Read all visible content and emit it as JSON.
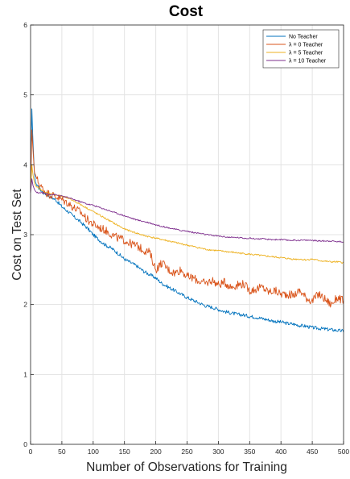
{
  "chart_data": {
    "type": "line",
    "title": "Cost",
    "xlabel": "Number of Observations for Training",
    "ylabel": "Cost on Test Set",
    "xlim": [
      0,
      500
    ],
    "ylim": [
      0,
      6
    ],
    "xticks": [
      0,
      50,
      100,
      150,
      200,
      250,
      300,
      350,
      400,
      450,
      500
    ],
    "yticks": [
      0,
      1,
      2,
      3,
      4,
      5,
      6
    ],
    "grid": true,
    "legend_position": "top-right",
    "series": [
      {
        "name": "No Teacher",
        "color": "#0072bd",
        "x": [
          0,
          2,
          4,
          6,
          8,
          10,
          15,
          20,
          25,
          30,
          40,
          50,
          60,
          70,
          80,
          90,
          100,
          110,
          120,
          130,
          140,
          150,
          160,
          170,
          180,
          190,
          200,
          210,
          220,
          230,
          240,
          250,
          260,
          270,
          280,
          290,
          300,
          310,
          320,
          330,
          340,
          350,
          360,
          370,
          380,
          390,
          400,
          410,
          420,
          430,
          440,
          450,
          460,
          470,
          480,
          490,
          500
        ],
        "values": [
          3.6,
          4.8,
          4.3,
          3.9,
          3.75,
          3.7,
          3.65,
          3.6,
          3.58,
          3.55,
          3.5,
          3.4,
          3.33,
          3.25,
          3.18,
          3.1,
          3.0,
          2.92,
          2.85,
          2.8,
          2.73,
          2.65,
          2.6,
          2.55,
          2.48,
          2.43,
          2.38,
          2.3,
          2.25,
          2.2,
          2.15,
          2.1,
          2.06,
          2.02,
          1.98,
          1.96,
          1.93,
          1.9,
          1.88,
          1.86,
          1.85,
          1.83,
          1.82,
          1.8,
          1.78,
          1.76,
          1.75,
          1.73,
          1.72,
          1.7,
          1.69,
          1.67,
          1.66,
          1.65,
          1.64,
          1.63,
          1.62
        ]
      },
      {
        "name": "λ = 0 Teacher",
        "color": "#d95319",
        "x": [
          0,
          2,
          4,
          6,
          8,
          10,
          15,
          20,
          25,
          30,
          40,
          50,
          60,
          70,
          80,
          90,
          100,
          110,
          120,
          130,
          140,
          150,
          160,
          170,
          180,
          190,
          200,
          210,
          220,
          230,
          240,
          250,
          260,
          270,
          280,
          290,
          300,
          310,
          320,
          330,
          340,
          350,
          360,
          370,
          380,
          390,
          400,
          410,
          420,
          430,
          440,
          450,
          460,
          470,
          480,
          490,
          500
        ],
        "values": [
          3.6,
          4.5,
          4.2,
          3.9,
          3.85,
          3.8,
          3.7,
          3.65,
          3.6,
          3.58,
          3.55,
          3.5,
          3.45,
          3.38,
          3.32,
          3.22,
          3.15,
          3.1,
          3.06,
          3.0,
          2.95,
          2.92,
          2.87,
          2.84,
          2.78,
          2.75,
          2.5,
          2.6,
          2.5,
          2.45,
          2.5,
          2.4,
          2.38,
          2.33,
          2.3,
          2.35,
          2.28,
          2.32,
          2.25,
          2.28,
          2.3,
          2.2,
          2.22,
          2.25,
          2.18,
          2.2,
          2.15,
          2.15,
          2.13,
          2.2,
          2.1,
          2.05,
          2.15,
          2.08,
          2.0,
          2.1,
          2.05
        ]
      },
      {
        "name": "λ = 5 Teacher",
        "color": "#edb120",
        "x": [
          0,
          2,
          4,
          6,
          8,
          10,
          15,
          20,
          25,
          30,
          40,
          50,
          60,
          70,
          80,
          90,
          100,
          110,
          120,
          130,
          140,
          150,
          160,
          170,
          180,
          190,
          200,
          210,
          220,
          230,
          240,
          250,
          260,
          270,
          280,
          290,
          300,
          310,
          320,
          330,
          340,
          350,
          360,
          370,
          380,
          390,
          400,
          410,
          420,
          430,
          440,
          450,
          460,
          470,
          480,
          490,
          500
        ],
        "values": [
          3.6,
          4.0,
          3.85,
          3.75,
          3.7,
          3.68,
          3.65,
          3.62,
          3.6,
          3.59,
          3.57,
          3.55,
          3.52,
          3.48,
          3.43,
          3.38,
          3.33,
          3.28,
          3.23,
          3.18,
          3.13,
          3.08,
          3.05,
          3.02,
          2.99,
          2.97,
          2.95,
          2.93,
          2.91,
          2.89,
          2.87,
          2.85,
          2.83,
          2.81,
          2.79,
          2.78,
          2.77,
          2.76,
          2.75,
          2.74,
          2.73,
          2.72,
          2.71,
          2.7,
          2.69,
          2.68,
          2.67,
          2.66,
          2.65,
          2.65,
          2.64,
          2.65,
          2.63,
          2.62,
          2.61,
          2.61,
          2.6
        ]
      },
      {
        "name": "λ = 10 Teacher",
        "color": "#7e2f8e",
        "x": [
          0,
          2,
          4,
          6,
          8,
          10,
          15,
          20,
          25,
          30,
          40,
          50,
          60,
          70,
          80,
          90,
          100,
          110,
          120,
          130,
          140,
          150,
          160,
          170,
          180,
          190,
          200,
          210,
          220,
          230,
          240,
          250,
          260,
          270,
          280,
          290,
          300,
          310,
          320,
          330,
          340,
          350,
          360,
          370,
          380,
          390,
          400,
          410,
          420,
          430,
          440,
          450,
          460,
          470,
          480,
          490,
          500
        ],
        "values": [
          3.6,
          3.8,
          3.7,
          3.65,
          3.62,
          3.6,
          3.6,
          3.6,
          3.59,
          3.58,
          3.57,
          3.55,
          3.53,
          3.5,
          3.47,
          3.44,
          3.42,
          3.39,
          3.36,
          3.33,
          3.3,
          3.27,
          3.24,
          3.21,
          3.19,
          3.17,
          3.14,
          3.12,
          3.1,
          3.08,
          3.06,
          3.05,
          3.03,
          3.02,
          3.0,
          2.99,
          2.98,
          2.97,
          2.96,
          2.96,
          2.95,
          2.95,
          2.94,
          2.94,
          2.93,
          2.93,
          2.93,
          2.92,
          2.92,
          2.92,
          2.92,
          2.92,
          2.91,
          2.91,
          2.91,
          2.9,
          2.9
        ]
      }
    ]
  }
}
